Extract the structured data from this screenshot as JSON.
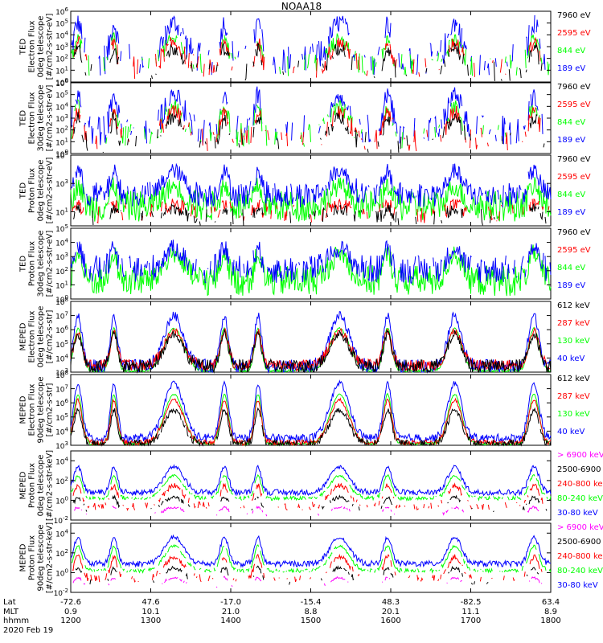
{
  "title": "NOAA18",
  "date_label": "2020 Feb 19",
  "colors": {
    "blue": "#0000ff",
    "red": "#ff0000",
    "green": "#00ff00",
    "black": "#000000",
    "magenta": "#ff00ff"
  },
  "bottom_axis": {
    "row_labels": [
      "Lat",
      "MLT",
      "hhmm"
    ],
    "columns": [
      {
        "lat": "-72.6",
        "mlt": "0.9",
        "hhmm": "1200"
      },
      {
        "lat": "47.6",
        "mlt": "10.1",
        "hhmm": "1300"
      },
      {
        "lat": "-17.0",
        "mlt": "21.0",
        "hhmm": "1400"
      },
      {
        "lat": "-15.4",
        "mlt": "8.8",
        "hhmm": "1500"
      },
      {
        "lat": "48.3",
        "mlt": "20.1",
        "hhmm": "1600"
      },
      {
        "lat": "-82.5",
        "mlt": "11.1",
        "hhmm": "1700"
      },
      {
        "lat": "63.4",
        "mlt": "8.9",
        "hhmm": "1800"
      }
    ]
  },
  "chart_data": [
    {
      "type": "line",
      "ylabel_lines": [
        "TED",
        "Electron Flux",
        "0deg telescope",
        "[#/cm2-s-str-eV]"
      ],
      "ylog_range": [
        0,
        6
      ],
      "yticks": [
        {
          "e": "0"
        },
        {
          "e": "1"
        },
        {
          "e": "2"
        },
        {
          "e": "3"
        },
        {
          "e": "4"
        },
        {
          "e": "5"
        },
        {
          "e": "6"
        }
      ],
      "xlim_hhmm": [
        1200,
        1800
      ],
      "legend": [
        {
          "label": "7960 eV",
          "color": "black"
        },
        {
          "label": "2595 eV",
          "color": "red"
        },
        {
          "label": "844 eV",
          "color": "green"
        },
        {
          "label": "189 eV",
          "color": "blue"
        }
      ],
      "series": [
        {
          "name": "189 eV",
          "color": "blue",
          "base": 1.9,
          "peak": 5.0,
          "noise": 1.4,
          "gap": 0.55
        },
        {
          "name": "844 eV",
          "color": "green",
          "base": 1.4,
          "peak": 3.6,
          "noise": 1.0,
          "gap": 0.7
        },
        {
          "name": "2595 eV",
          "color": "red",
          "base": 1.2,
          "peak": 3.3,
          "noise": 1.0,
          "gap": 0.75
        },
        {
          "name": "7960 eV",
          "color": "black",
          "base": 0.9,
          "peak": 2.8,
          "noise": 0.9,
          "gap": 0.8
        }
      ]
    },
    {
      "type": "line",
      "ylabel_lines": [
        "TED",
        "Electron Flux",
        "30deg telescope",
        "[#/cm2-s-str-eV]"
      ],
      "ylog_range": [
        0,
        6
      ],
      "yticks": [
        {
          "e": "0"
        },
        {
          "e": "1"
        },
        {
          "e": "2"
        },
        {
          "e": "3"
        },
        {
          "e": "4"
        },
        {
          "e": "5"
        },
        {
          "e": "6"
        }
      ],
      "xlim_hhmm": [
        1200,
        1800
      ],
      "legend": [
        {
          "label": "7960 eV",
          "color": "black"
        },
        {
          "label": "2595 eV",
          "color": "red"
        },
        {
          "label": "844 eV",
          "color": "green"
        },
        {
          "label": "189 eV",
          "color": "blue"
        }
      ],
      "series": [
        {
          "name": "189 eV",
          "color": "blue",
          "base": 2.0,
          "peak": 5.0,
          "noise": 1.3,
          "gap": 0.5
        },
        {
          "name": "844 eV",
          "color": "green",
          "base": 1.5,
          "peak": 3.9,
          "noise": 1.1,
          "gap": 0.65
        },
        {
          "name": "2595 eV",
          "color": "red",
          "base": 1.2,
          "peak": 3.5,
          "noise": 1.0,
          "gap": 0.7
        },
        {
          "name": "7960 eV",
          "color": "black",
          "base": 0.9,
          "peak": 3.0,
          "noise": 0.9,
          "gap": 0.75
        }
      ]
    },
    {
      "type": "line",
      "ylabel_lines": [
        "TED",
        "Proton Flux",
        "0deg telescope",
        "[#/cm2-s-str-eV]"
      ],
      "ylog_range": [
        0,
        5
      ],
      "yticks": [
        {
          "e": "1"
        },
        {
          "e": "3"
        },
        {
          "e": "5"
        }
      ],
      "xlim_hhmm": [
        1200,
        1800
      ],
      "legend": [
        {
          "label": "7960 eV",
          "color": "black"
        },
        {
          "label": "2595 eV",
          "color": "red"
        },
        {
          "label": "844 eV",
          "color": "green"
        },
        {
          "label": "189 eV",
          "color": "blue"
        }
      ],
      "series": [
        {
          "name": "844 eV",
          "color": "green",
          "base": 1.4,
          "peak": 2.8,
          "noise": 1.1,
          "gap": 0.0
        },
        {
          "name": "189 eV",
          "color": "blue",
          "base": 2.2,
          "peak": 3.9,
          "noise": 0.9,
          "gap": 0.1
        },
        {
          "name": "2595 eV",
          "color": "red",
          "base": 0.9,
          "peak": 1.5,
          "noise": 0.7,
          "gap": 0.6
        },
        {
          "name": "7960 eV",
          "color": "black",
          "base": 0.6,
          "peak": 1.2,
          "noise": 0.6,
          "gap": 0.7
        }
      ]
    },
    {
      "type": "line",
      "ylabel_lines": [
        "TED",
        "Proton Flux",
        "30deg telescope",
        "[#/cm2-s-str-eV]"
      ],
      "ylog_range": [
        0,
        5
      ],
      "yticks": [
        {
          "e": "0"
        },
        {
          "e": "1"
        },
        {
          "e": "2"
        },
        {
          "e": "3"
        },
        {
          "e": "4"
        },
        {
          "e": "5"
        }
      ],
      "xlim_hhmm": [
        1200,
        1800
      ],
      "legend": [
        {
          "label": "7960 eV",
          "color": "black"
        },
        {
          "label": "2595 eV",
          "color": "red"
        },
        {
          "label": "844 eV",
          "color": "green"
        },
        {
          "label": "189 eV",
          "color": "blue"
        }
      ],
      "series": [
        {
          "name": "844 eV",
          "color": "green",
          "base": 1.3,
          "peak": 3.2,
          "noise": 1.1,
          "gap": 0.0
        },
        {
          "name": "189 eV",
          "color": "blue",
          "base": 2.1,
          "peak": 3.6,
          "noise": 1.0,
          "gap": 0.15
        }
      ]
    },
    {
      "type": "line",
      "ylabel_lines": [
        "MEPED",
        "Electron Flux",
        "0deg telescope",
        "[#/cm2-s-str]"
      ],
      "ylog_range": [
        3,
        8
      ],
      "yticks": [
        {
          "e": "3"
        },
        {
          "e": "4"
        },
        {
          "e": "5"
        },
        {
          "e": "6"
        },
        {
          "e": "7"
        },
        {
          "e": "8"
        }
      ],
      "xlim_hhmm": [
        1200,
        1800
      ],
      "legend": [
        {
          "label": "612 keV",
          "color": "black"
        },
        {
          "label": "287 keV",
          "color": "red"
        },
        {
          "label": "130 keV",
          "color": "green"
        },
        {
          "label": "40 keV",
          "color": "blue"
        }
      ],
      "series": [
        {
          "name": "130 keV",
          "color": "green",
          "base": 3.1,
          "peak": 6.1,
          "noise": 0.1,
          "gap": 0.0
        },
        {
          "name": "40 keV",
          "color": "blue",
          "base": 3.4,
          "peak": 7.0,
          "noise": 0.5,
          "gap": 0.0
        },
        {
          "name": "287 keV",
          "color": "red",
          "base": 3.5,
          "peak": 5.9,
          "noise": 0.4,
          "gap": 0.0
        },
        {
          "name": "612 keV",
          "color": "black",
          "base": 3.4,
          "peak": 5.7,
          "noise": 0.5,
          "gap": 0.0
        }
      ]
    },
    {
      "type": "line",
      "ylabel_lines": [
        "MEPED",
        "Electron Flux",
        "90deg telescope",
        "[#/cm2-s-str]"
      ],
      "ylog_range": [
        3,
        8
      ],
      "yticks": [
        {
          "e": "3"
        },
        {
          "e": "4"
        },
        {
          "e": "5"
        },
        {
          "e": "6"
        },
        {
          "e": "7"
        },
        {
          "e": "8"
        }
      ],
      "xlim_hhmm": [
        1200,
        1800
      ],
      "legend": [
        {
          "label": "612 keV",
          "color": "black"
        },
        {
          "label": "287 keV",
          "color": "red"
        },
        {
          "label": "130 keV",
          "color": "green"
        },
        {
          "label": "40 keV",
          "color": "blue"
        }
      ],
      "series": [
        {
          "name": "130 keV",
          "color": "green",
          "base": 3.1,
          "peak": 6.6,
          "noise": 0.1,
          "gap": 0.0
        },
        {
          "name": "40 keV",
          "color": "blue",
          "base": 3.5,
          "peak": 7.4,
          "noise": 0.3,
          "gap": 0.0
        },
        {
          "name": "287 keV",
          "color": "red",
          "base": 3.2,
          "peak": 6.2,
          "noise": 0.2,
          "gap": 0.0
        },
        {
          "name": "612 keV",
          "color": "black",
          "base": 3.1,
          "peak": 5.5,
          "noise": 0.3,
          "gap": 0.1
        }
      ]
    },
    {
      "type": "line",
      "ylabel_lines": [
        "MEPED",
        "Proton Flux",
        "0deg telescope",
        "[#/cm2-s-str-keV]"
      ],
      "ylog_range": [
        -2,
        5
      ],
      "yticks": [
        {
          "e": "-2"
        },
        {
          "e": "0"
        },
        {
          "e": "2"
        },
        {
          "e": "4"
        }
      ],
      "xlim_hhmm": [
        1200,
        1800
      ],
      "legend": [
        {
          "label": "> 6900 keV",
          "color": "magenta"
        },
        {
          "label": "2500-6900",
          "color": "black"
        },
        {
          "label": "240-800 ke",
          "color": "red"
        },
        {
          "label": "80-240 keV",
          "color": "green"
        },
        {
          "label": "30-80 keV",
          "color": "blue"
        }
      ],
      "series": [
        {
          "name": "30-80 keV",
          "color": "blue",
          "base": 0.8,
          "peak": 3.4,
          "noise": 0.3,
          "gap": 0.0
        },
        {
          "name": "80-240 keV",
          "color": "green",
          "base": 0.2,
          "peak": 2.5,
          "noise": 0.2,
          "gap": 0.2
        },
        {
          "name": "240-800 keV",
          "color": "red",
          "base": -0.6,
          "peak": 1.5,
          "noise": 0.4,
          "gap": 0.6
        },
        {
          "name": "2500-6900 keV",
          "color": "black",
          "base": -1.0,
          "peak": 0.3,
          "noise": 0.3,
          "gap": 0.85
        },
        {
          "name": "> 6900 keV",
          "color": "magenta",
          "base": -1.5,
          "peak": -0.7,
          "noise": 0.2,
          "gap": 0.95
        }
      ]
    },
    {
      "type": "line",
      "ylabel_lines": [
        "MEPED",
        "Proton Flux",
        "90deg telescope",
        "[#/cm2-s-str-keV]"
      ],
      "ylog_range": [
        -2,
        5
      ],
      "yticks": [
        {
          "e": "-2"
        },
        {
          "e": "0"
        },
        {
          "e": "2"
        },
        {
          "e": "4"
        }
      ],
      "xlim_hhmm": [
        1200,
        1800
      ],
      "legend": [
        {
          "label": "> 6900 keV",
          "color": "magenta"
        },
        {
          "label": "2500-6900",
          "color": "black"
        },
        {
          "label": "240-800 ke",
          "color": "red"
        },
        {
          "label": "80-240 keV",
          "color": "green"
        },
        {
          "label": "30-80 keV",
          "color": "blue"
        }
      ],
      "series": [
        {
          "name": "30-80 keV",
          "color": "blue",
          "base": 0.9,
          "peak": 3.6,
          "noise": 0.3,
          "gap": 0.0
        },
        {
          "name": "80-240 keV",
          "color": "green",
          "base": 0.2,
          "peak": 2.7,
          "noise": 0.2,
          "gap": 0.2
        },
        {
          "name": "240-800 keV",
          "color": "red",
          "base": -0.6,
          "peak": 1.6,
          "noise": 0.4,
          "gap": 0.6
        },
        {
          "name": "2500-6900 keV",
          "color": "black",
          "base": -1.0,
          "peak": 0.5,
          "noise": 0.3,
          "gap": 0.85
        },
        {
          "name": "> 6900 keV",
          "color": "magenta",
          "base": -1.5,
          "peak": -0.5,
          "noise": 0.2,
          "gap": 0.95
        }
      ]
    }
  ]
}
